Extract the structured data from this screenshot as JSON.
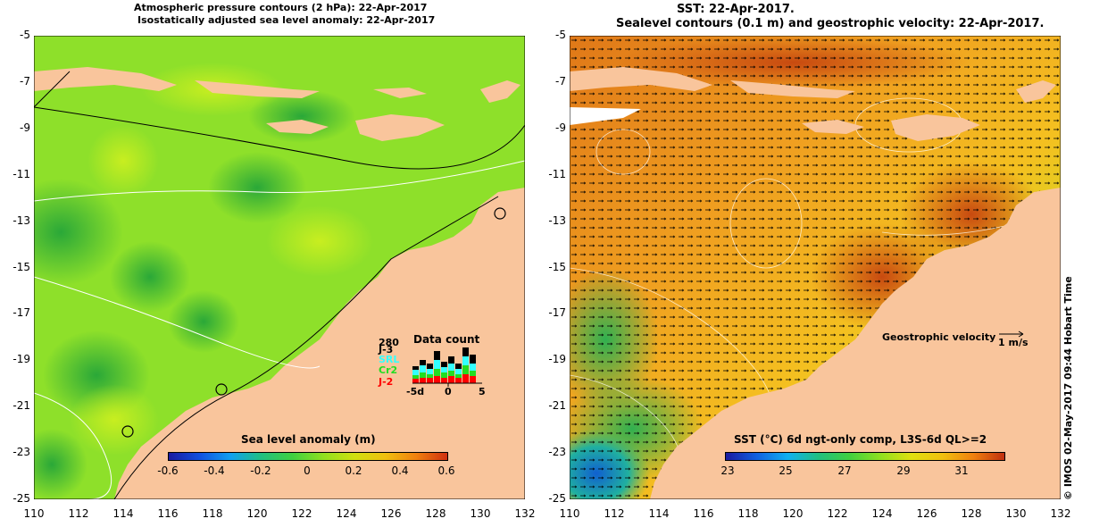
{
  "left_panel": {
    "title_line1": "Atmospheric pressure contours (2 hPa): 22-Apr-2017",
    "title_line2": "Isostatically adjusted sea level anomaly: 22-Apr-2017",
    "colorbar_title": "Sea level anomaly (m)",
    "colorbar_ticks": [
      "-0.6",
      "-0.4",
      "-0.2",
      "0",
      "0.2",
      "0.4",
      "0.6"
    ],
    "data_count": {
      "title": "Data count",
      "max_label": "280",
      "satellites": [
        {
          "name": "J-3",
          "color": "#000000"
        },
        {
          "name": "SRL",
          "color": "#33ffff"
        },
        {
          "name": "Cr2",
          "color": "#22dd22"
        },
        {
          "name": "J-2",
          "color": "#ff0000"
        }
      ],
      "axis_labels": [
        "-5d",
        "0",
        "5"
      ]
    }
  },
  "right_panel": {
    "title_line1": "SST: 22-Apr-2017.",
    "title_line2": "Sealevel contours (0.1 m) and geostrophic velocity: 22-Apr-2017.",
    "colorbar_title": "SST (°C) 6d ngt-only comp, L3S-6d QL>=2",
    "colorbar_ticks": [
      "23",
      "25",
      "27",
      "29",
      "31"
    ],
    "velocity_legend": "Geostrophic velocity",
    "velocity_unit": "1 m/s"
  },
  "axes": {
    "y_ticks": [
      "-5",
      "-7",
      "-9",
      "-11",
      "-13",
      "-15",
      "-17",
      "-19",
      "-21",
      "-23",
      "-25"
    ],
    "x_ticks": [
      "110",
      "112",
      "114",
      "116",
      "118",
      "120",
      "122",
      "124",
      "126",
      "128",
      "130",
      "132"
    ]
  },
  "credit": "© IMOS 02-May-2017 09:44 Hobart Time",
  "colors": {
    "land": "#f9c59c",
    "sla_main": "#8ee02a",
    "sst_main": "#f0a020"
  }
}
